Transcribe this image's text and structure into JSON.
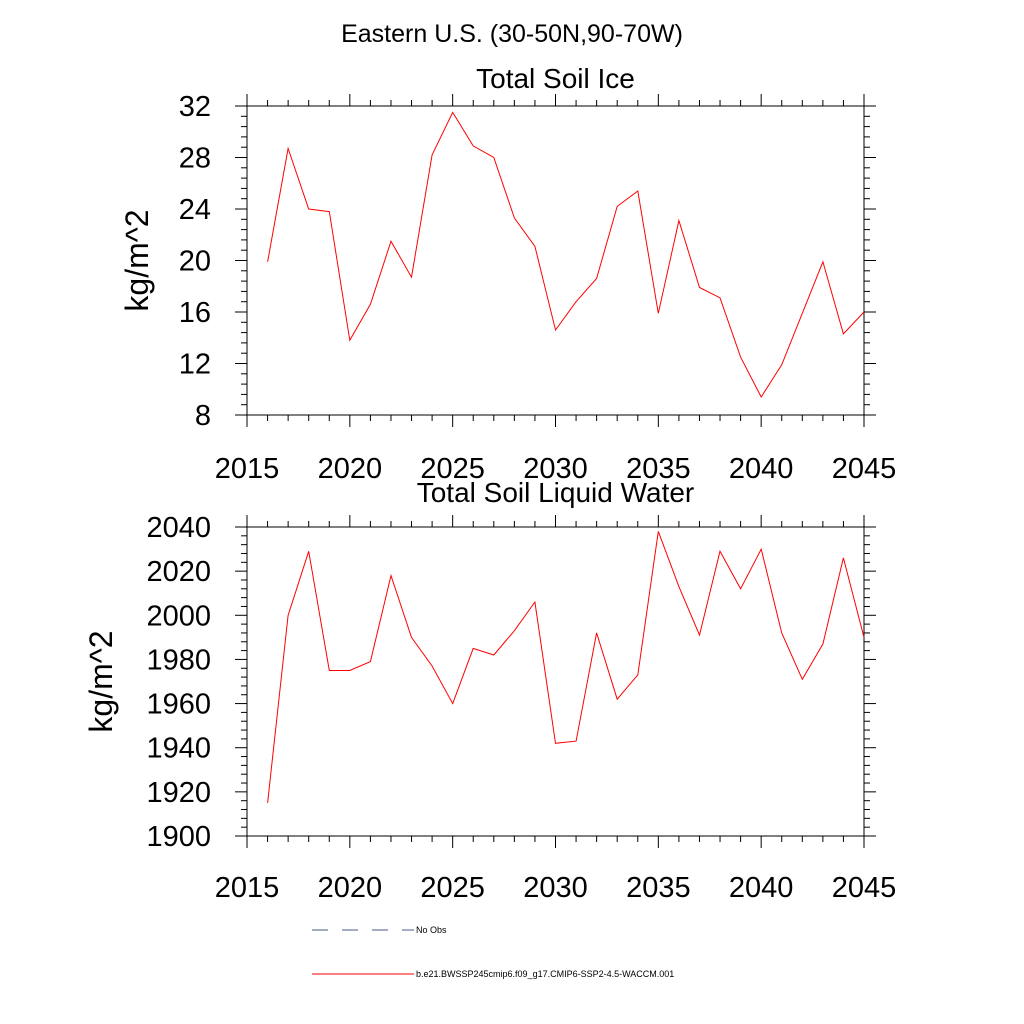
{
  "figure": {
    "suptitle": "Eastern U.S. (30-50N,90-70W)"
  },
  "chart_data": [
    {
      "type": "line",
      "title": "Total Soil Ice",
      "xlabel": "",
      "ylabel": "kg/m^2",
      "xlim": [
        2015,
        2045
      ],
      "ylim": [
        8,
        32
      ],
      "xticks": [
        2015,
        2020,
        2025,
        2030,
        2035,
        2040,
        2045
      ],
      "yticks": [
        8,
        12,
        16,
        20,
        24,
        28,
        32
      ],
      "series": [
        {
          "name": "b.e21.BWSSP245cmip6.f09_g17.CMIP6-SSP2-4.5-WACCM.001",
          "color": "#ff0000",
          "x": [
            2016,
            2017,
            2018,
            2019,
            2020,
            2021,
            2022,
            2023,
            2024,
            2025,
            2026,
            2027,
            2028,
            2029,
            2030,
            2031,
            2032,
            2033,
            2034,
            2035,
            2036,
            2037,
            2038,
            2039,
            2040,
            2041,
            2042,
            2043,
            2044,
            2045
          ],
          "y": [
            19.9,
            28.7,
            24.0,
            23.8,
            13.8,
            16.6,
            21.5,
            18.7,
            28.2,
            31.5,
            28.9,
            28.0,
            23.3,
            21.1,
            14.6,
            16.8,
            18.6,
            24.2,
            25.4,
            15.9,
            23.1,
            17.9,
            17.1,
            12.5,
            9.4,
            11.9,
            15.9,
            19.9,
            14.3,
            16.0
          ]
        }
      ]
    },
    {
      "type": "line",
      "title": "Total Soil Liquid Water",
      "xlabel": "",
      "ylabel": "kg/m^2",
      "xlim": [
        2015,
        2045
      ],
      "ylim": [
        1900,
        2040
      ],
      "xticks": [
        2015,
        2020,
        2025,
        2030,
        2035,
        2040,
        2045
      ],
      "yticks": [
        1900,
        1920,
        1940,
        1960,
        1980,
        2000,
        2020,
        2040
      ],
      "series": [
        {
          "name": "b.e21.BWSSP245cmip6.f09_g17.CMIP6-SSP2-4.5-WACCM.001",
          "color": "#ff0000",
          "x": [
            2016,
            2017,
            2018,
            2019,
            2020,
            2021,
            2022,
            2023,
            2024,
            2025,
            2026,
            2027,
            2028,
            2029,
            2030,
            2031,
            2032,
            2033,
            2034,
            2035,
            2036,
            2037,
            2038,
            2039,
            2040,
            2041,
            2042,
            2043,
            2044,
            2045
          ],
          "y": [
            1915,
            2000,
            2029,
            1975,
            1975,
            1979,
            2018,
            1990,
            1977,
            1960,
            1985,
            1982,
            1993,
            2006,
            1942,
            1943,
            1992,
            1962,
            1973,
            2038,
            2013,
            1991,
            2029,
            2012,
            2030,
            1992,
            1971,
            1987,
            2026,
            1990
          ]
        }
      ]
    }
  ],
  "legend": {
    "placement": "bottom",
    "entries": [
      {
        "label": "No Obs",
        "color": "#4a5a8a",
        "style": "dashed"
      },
      {
        "label": "b.e21.BWSSP245cmip6.f09_g17.CMIP6-SSP2-4.5-WACCM.001",
        "color": "#ff0000",
        "style": "solid"
      }
    ]
  }
}
